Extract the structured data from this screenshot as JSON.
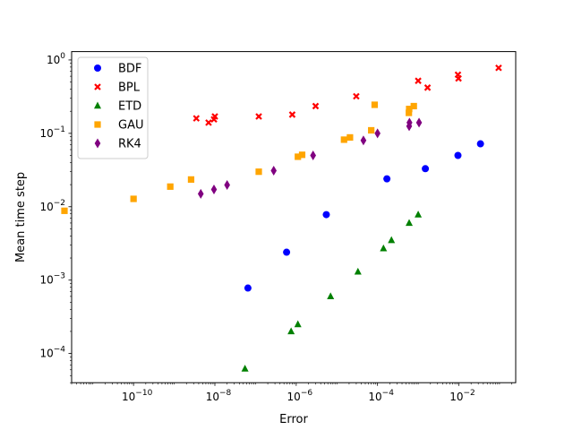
{
  "chart_data": {
    "type": "scatter",
    "title": "",
    "xlabel": "Error",
    "ylabel": "Mean time step",
    "xscale": "log",
    "yscale": "log",
    "xlim": [
      3e-12,
      0.25
    ],
    "ylim": [
      4e-05,
      1.3
    ],
    "x_ticks": [
      {
        "exp": -10,
        "label": "10",
        "sup": "−10"
      },
      {
        "exp": -8,
        "label": "10",
        "sup": "−8"
      },
      {
        "exp": -6,
        "label": "10",
        "sup": "−6"
      },
      {
        "exp": -4,
        "label": "10",
        "sup": "−4"
      },
      {
        "exp": -2,
        "label": "10",
        "sup": "−2"
      }
    ],
    "y_ticks": [
      {
        "exp": -4,
        "label": "10",
        "sup": "−4"
      },
      {
        "exp": -3,
        "label": "10",
        "sup": "−3"
      },
      {
        "exp": -2,
        "label": "10",
        "sup": "−2"
      },
      {
        "exp": -1,
        "label": "10",
        "sup": "−1"
      },
      {
        "exp": 0,
        "label": "10",
        "sup": "0"
      }
    ],
    "grid": false,
    "legend_position": "top-left",
    "series": [
      {
        "name": "BDF",
        "color": "#0000ff",
        "marker": "circle",
        "points": [
          [
            6.5e-08,
            0.00078
          ],
          [
            5.8e-07,
            0.0024
          ],
          [
            5.5e-06,
            0.0078
          ],
          [
            0.00017,
            0.024
          ],
          [
            0.0015,
            0.033
          ],
          [
            0.0095,
            0.05
          ],
          [
            0.034,
            0.072
          ]
        ]
      },
      {
        "name": "BPL",
        "color": "#ff0000",
        "marker": "x",
        "points": [
          [
            3.5e-09,
            0.16
          ],
          [
            7e-09,
            0.14
          ],
          [
            9.5e-09,
            0.155
          ],
          [
            1e-08,
            0.17
          ],
          [
            1.2e-07,
            0.17
          ],
          [
            8e-07,
            0.18
          ],
          [
            3e-06,
            0.235
          ],
          [
            3e-05,
            0.32
          ],
          [
            0.001,
            0.52
          ],
          [
            0.0017,
            0.42
          ],
          [
            0.0095,
            0.63
          ],
          [
            0.0098,
            0.56
          ],
          [
            0.095,
            0.78
          ]
        ]
      },
      {
        "name": "ETD",
        "color": "#008000",
        "marker": "triangle",
        "points": [
          [
            5.5e-08,
            6.2e-05
          ],
          [
            7.5e-07,
            0.0002
          ],
          [
            1.1e-06,
            0.00025
          ],
          [
            7e-06,
            0.0006
          ],
          [
            3.3e-05,
            0.0013
          ],
          [
            0.00014,
            0.0027
          ],
          [
            0.00022,
            0.0035
          ],
          [
            0.0006,
            0.006
          ],
          [
            0.001,
            0.0078
          ]
        ]
      },
      {
        "name": "GAU",
        "color": "#ffa500",
        "marker": "square",
        "points": [
          [
            2e-12,
            0.0088
          ],
          [
            1e-10,
            0.0128
          ],
          [
            8e-10,
            0.0188
          ],
          [
            2.6e-09,
            0.0235
          ],
          [
            1.2e-07,
            0.03
          ],
          [
            1.1e-06,
            0.048
          ],
          [
            1.4e-06,
            0.051
          ],
          [
            1.5e-05,
            0.082
          ],
          [
            2.1e-05,
            0.088
          ],
          [
            7e-05,
            0.11
          ],
          [
            8.5e-05,
            0.245
          ],
          [
            0.00059,
            0.19
          ],
          [
            0.0006,
            0.215
          ],
          [
            0.00078,
            0.235
          ]
        ]
      },
      {
        "name": "RK4",
        "color": "#800080",
        "marker": "diamond",
        "points": [
          [
            4.5e-09,
            0.015
          ],
          [
            9.5e-09,
            0.0172
          ],
          [
            2e-08,
            0.0198
          ],
          [
            2.8e-07,
            0.031
          ],
          [
            2.6e-06,
            0.05
          ],
          [
            4.5e-05,
            0.08
          ],
          [
            0.0001,
            0.1
          ],
          [
            0.0006,
            0.125
          ],
          [
            0.00061,
            0.14
          ],
          [
            0.00105,
            0.14
          ]
        ]
      }
    ]
  }
}
